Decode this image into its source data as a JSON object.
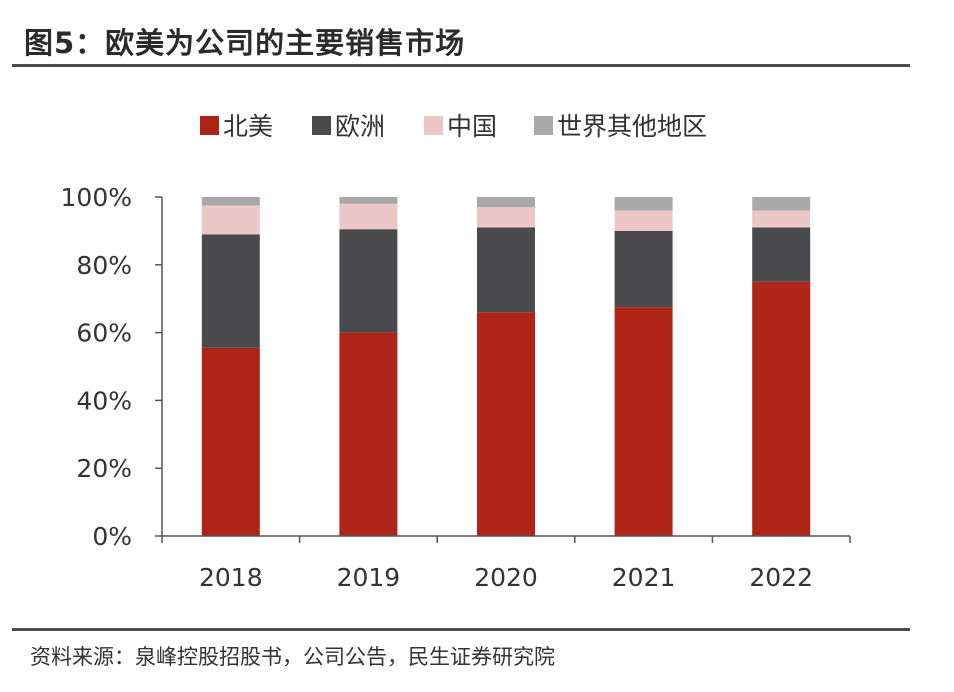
{
  "title": "图5：欧美为公司的主要销售市场",
  "source": "资料来源：泉峰控股招股书，公司公告，民生证券研究院",
  "chart_data": {
    "type": "bar",
    "stacked": true,
    "categories": [
      "2018",
      "2019",
      "2020",
      "2021",
      "2022"
    ],
    "series": [
      {
        "name": "北美",
        "color": "#AE2417",
        "values": [
          55.5,
          60.0,
          66.0,
          67.5,
          75.0
        ]
      },
      {
        "name": "欧洲",
        "color": "#4A4A4C",
        "values": [
          33.5,
          30.5,
          25.0,
          22.5,
          16.0
        ]
      },
      {
        "name": "中国",
        "color": "#EDC7C7",
        "values": [
          8.5,
          7.5,
          6.0,
          6.0,
          5.0
        ]
      },
      {
        "name": "世界其他地区",
        "color": "#A9A9A9",
        "values": [
          2.5,
          2.0,
          3.0,
          4.0,
          4.0
        ]
      }
    ],
    "y_ticks": [
      "0%",
      "20%",
      "40%",
      "60%",
      "80%",
      "100%"
    ],
    "ylim": [
      0,
      100
    ],
    "legend_position": "top-center",
    "grid": false
  }
}
